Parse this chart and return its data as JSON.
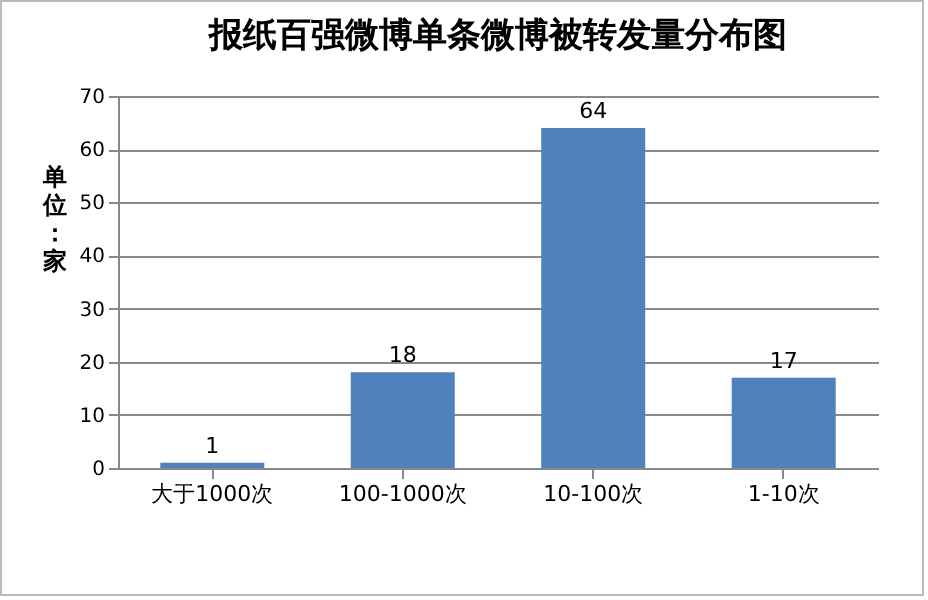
{
  "chart_data": {
    "type": "bar",
    "title": "报纸百强微博单条微博被转发量分布图",
    "ylabel": "单位：家",
    "categories": [
      "大于1000次",
      "100-1000次",
      "10-100次",
      "1-10次"
    ],
    "values": [
      1,
      18,
      64,
      17
    ],
    "color": "#4f81bd",
    "ylim": [
      0,
      70
    ],
    "yticks": [
      0,
      10,
      20,
      30,
      40,
      50,
      60,
      70
    ],
    "grid": "y",
    "data_labels": true
  }
}
